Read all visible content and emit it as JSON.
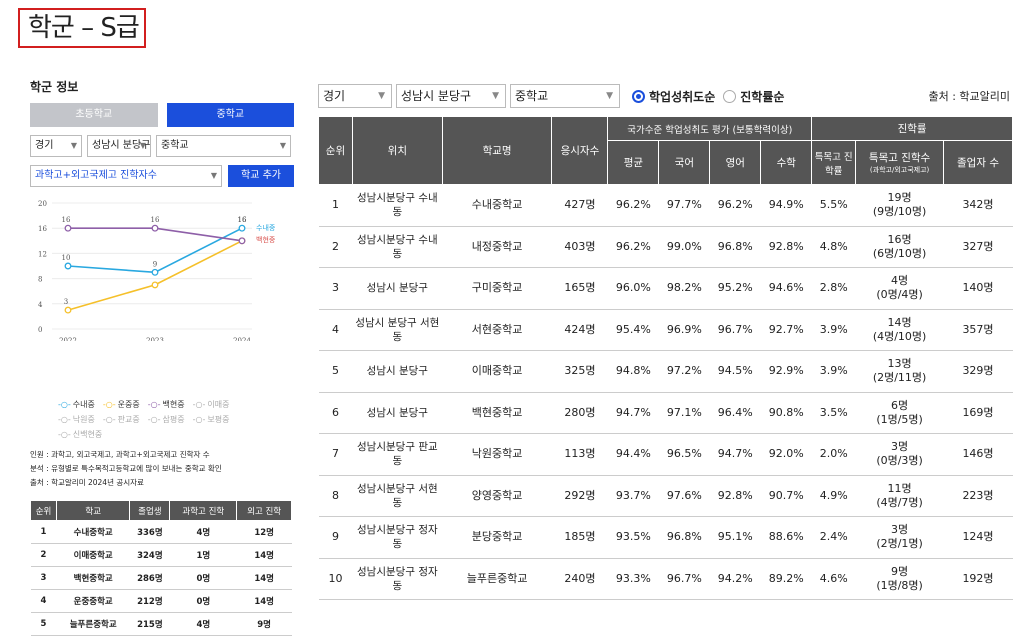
{
  "page_title": "학군 – S급",
  "left": {
    "section_title": "학군 정보",
    "level_tabs": [
      "초등학교",
      "중학교"
    ],
    "filters": {
      "region": "경기",
      "district": "성남시 분당구",
      "level": "중학교"
    },
    "metric_select": "과학고+외고국제고 진학자수",
    "add_button": "학교 추가",
    "chart_data": {
      "type": "line",
      "x": [
        "2022",
        "2023",
        "2024"
      ],
      "ylim": [
        0,
        20
      ],
      "yticks": [
        0,
        4,
        8,
        12,
        16,
        20
      ],
      "series": [
        {
          "name": "수내중",
          "values": [
            10,
            9,
            16
          ],
          "color": "#29a8e0",
          "labels": [
            "10",
            "9",
            "16"
          ]
        },
        {
          "name": "운중중",
          "values": [
            3,
            7,
            14
          ],
          "color": "#f5c02a",
          "labels": [
            "3",
            "",
            ""
          ]
        },
        {
          "name": "백현중",
          "values": [
            16,
            16,
            14
          ],
          "color": "#8e5fa8",
          "labels": [
            "16",
            "16",
            ""
          ]
        }
      ],
      "end_labels": [
        {
          "name": "수내중",
          "color": "#29a8e0"
        },
        {
          "name": "백현중",
          "color": "#d9534f"
        }
      ],
      "top_value_label": "16"
    },
    "legend_rows": [
      [
        {
          "name": "수내중",
          "color": "#29a8e0",
          "active": true
        },
        {
          "name": "운중중",
          "color": "#f5c02a",
          "active": true
        },
        {
          "name": "백현중",
          "color": "#8e5fa8",
          "active": true
        },
        {
          "name": "이매중",
          "color": "#aaaaaa",
          "active": false
        }
      ],
      [
        {
          "name": "낙원중",
          "color": "#aaaaaa",
          "active": false
        },
        {
          "name": "판교중",
          "color": "#aaaaaa",
          "active": false
        },
        {
          "name": "삼평중",
          "color": "#aaaaaa",
          "active": false
        },
        {
          "name": "보평중",
          "color": "#aaaaaa",
          "active": false
        }
      ],
      [
        {
          "name": "신백현중",
          "color": "#aaaaaa",
          "active": false
        }
      ]
    ],
    "notes": [
      "인원 : 과학고, 외고국제고, 과학고+외고국제고 진학자 수",
      "분석 : 유형별로 특수목적고등학교에 많이 보내는 중학교 확인",
      "출처 : 학교알리미 2024년 공시자료"
    ],
    "table": {
      "headers": [
        "순위",
        "학교",
        "졸업생",
        "과학고 진학",
        "외고 진학"
      ],
      "rows": [
        [
          "1",
          "수내중학교",
          "336명",
          "4명",
          "12명"
        ],
        [
          "2",
          "이매중학교",
          "324명",
          "1명",
          "14명"
        ],
        [
          "3",
          "백현중학교",
          "286명",
          "0명",
          "14명"
        ],
        [
          "4",
          "운중중학교",
          "212명",
          "0명",
          "14명"
        ],
        [
          "5",
          "늘푸른중학교",
          "215명",
          "4명",
          "9명"
        ]
      ]
    }
  },
  "right": {
    "selects": [
      "경기",
      "성남시 분당구",
      "중학교"
    ],
    "radios": [
      {
        "label": "학업성취도순",
        "checked": true
      },
      {
        "label": "진학률순",
        "checked": false
      }
    ],
    "source": "출처 : 학교알리미",
    "headers": {
      "rank": "순위",
      "location": "위치",
      "school": "학교명",
      "examinees": "응시자수",
      "national_group": "국가수준 학업성취도 평가 (보통학력이상)",
      "avg": "평균",
      "korean": "국어",
      "english": "영어",
      "math": "수학",
      "advance_group": "진학률",
      "special_rate": "특목고 진학률",
      "special_count": "특목고 진학수",
      "special_count_sub": "(과학고/외고국제고)",
      "graduates": "졸업자 수"
    },
    "rows": [
      {
        "rank": "1",
        "location": "성남시분당구 수내동",
        "school": "수내중학교",
        "examinees": "427명",
        "avg": "96.2%",
        "korean": "97.7%",
        "english": "96.2%",
        "math": "94.9%",
        "rate": "5.5%",
        "count": "19명",
        "count_sub": "(9명/10명)",
        "grads": "342명"
      },
      {
        "rank": "2",
        "location": "성남시분당구 수내동",
        "school": "내정중학교",
        "examinees": "403명",
        "avg": "96.2%",
        "korean": "99.0%",
        "english": "96.8%",
        "math": "92.8%",
        "rate": "4.8%",
        "count": "16명",
        "count_sub": "(6명/10명)",
        "grads": "327명"
      },
      {
        "rank": "3",
        "location": "성남시 분당구",
        "school": "구미중학교",
        "examinees": "165명",
        "avg": "96.0%",
        "korean": "98.2%",
        "english": "95.2%",
        "math": "94.6%",
        "rate": "2.8%",
        "count": "4명",
        "count_sub": "(0명/4명)",
        "grads": "140명"
      },
      {
        "rank": "4",
        "location": "성남시 분당구 서현동",
        "school": "서현중학교",
        "examinees": "424명",
        "avg": "95.4%",
        "korean": "96.9%",
        "english": "96.7%",
        "math": "92.7%",
        "rate": "3.9%",
        "count": "14명",
        "count_sub": "(4명/10명)",
        "grads": "357명"
      },
      {
        "rank": "5",
        "location": "성남시 분당구",
        "school": "이매중학교",
        "examinees": "325명",
        "avg": "94.8%",
        "korean": "97.2%",
        "english": "94.5%",
        "math": "92.9%",
        "rate": "3.9%",
        "count": "13명",
        "count_sub": "(2명/11명)",
        "grads": "329명"
      },
      {
        "rank": "6",
        "location": "성남시 분당구",
        "school": "백현중학교",
        "examinees": "280명",
        "avg": "94.7%",
        "korean": "97.1%",
        "english": "96.4%",
        "math": "90.8%",
        "rate": "3.5%",
        "count": "6명",
        "count_sub": "(1명/5명)",
        "grads": "169명"
      },
      {
        "rank": "7",
        "location": "성남시분당구 판교동",
        "school": "낙원중학교",
        "examinees": "113명",
        "avg": "94.4%",
        "korean": "96.5%",
        "english": "94.7%",
        "math": "92.0%",
        "rate": "2.0%",
        "count": "3명",
        "count_sub": "(0명/3명)",
        "grads": "146명"
      },
      {
        "rank": "8",
        "location": "성남시분당구 서현동",
        "school": "양영중학교",
        "examinees": "292명",
        "avg": "93.7%",
        "korean": "97.6%",
        "english": "92.8%",
        "math": "90.7%",
        "rate": "4.9%",
        "count": "11명",
        "count_sub": "(4명/7명)",
        "grads": "223명"
      },
      {
        "rank": "9",
        "location": "성남시분당구 정자동",
        "school": "분당중학교",
        "examinees": "185명",
        "avg": "93.5%",
        "korean": "96.8%",
        "english": "95.1%",
        "math": "88.6%",
        "rate": "2.4%",
        "count": "3명",
        "count_sub": "(2명/1명)",
        "grads": "124명"
      },
      {
        "rank": "10",
        "location": "성남시분당구 정자동",
        "school": "늘푸른중학교",
        "examinees": "240명",
        "avg": "93.3%",
        "korean": "96.7%",
        "english": "94.2%",
        "math": "89.2%",
        "rate": "4.6%",
        "count": "9명",
        "count_sub": "(1명/8명)",
        "grads": "192명"
      }
    ]
  }
}
